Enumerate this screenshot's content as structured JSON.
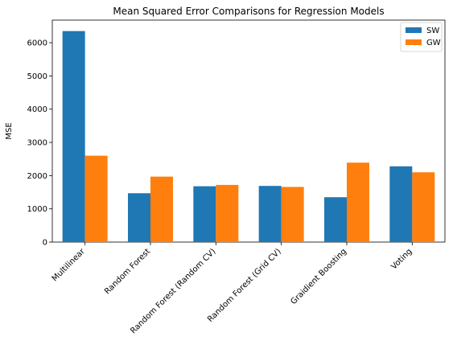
{
  "chart_data": {
    "type": "bar",
    "title": "Mean Squared Error Comparisons for Regression Models",
    "xlabel": "",
    "ylabel": "MSE",
    "ylim": [
      0,
      6680
    ],
    "yticks": [
      0,
      1000,
      2000,
      3000,
      4000,
      5000,
      6000
    ],
    "categories": [
      "Multilinear",
      "Random Forest",
      "Random Forest (Random CV)",
      "Random Forest (Grid CV)",
      "Graidient Boosting",
      "Voting"
    ],
    "series": [
      {
        "name": "SW",
        "color": "#1f77b4",
        "values": [
          6350,
          1470,
          1680,
          1690,
          1350,
          2280
        ]
      },
      {
        "name": "GW",
        "color": "#ff7f0e",
        "values": [
          2600,
          1970,
          1720,
          1660,
          2390,
          2100
        ]
      }
    ],
    "legend_position": "top-right",
    "grid": false
  }
}
